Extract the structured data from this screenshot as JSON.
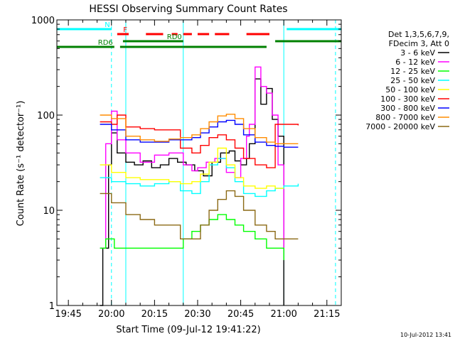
{
  "chart_data": {
    "type": "line",
    "title": "HESSI Observing Summary Count Rates",
    "xlabel": "Start Time (09-Jul-12 19:41:22)",
    "ylabel": "Count Rate (s⁻¹ detector⁻¹)",
    "yscale": "log",
    "ylim": [
      1,
      1000
    ],
    "xlim": [
      "19:41",
      "21:20"
    ],
    "x_ticks": [
      "19:45",
      "20:00",
      "20:15",
      "20:30",
      "20:45",
      "21:00",
      "21:15"
    ],
    "y_ticks": [
      "1",
      "10",
      "100",
      "1000"
    ],
    "timestamp": "10-Jul-2012 13:41",
    "legend_placement": "right",
    "legend_header": [
      "Det 1,3,5,6,7,9,",
      "FDecim 3, Att 0"
    ],
    "series": [
      {
        "name": "3 - 6 keV",
        "color": "#000000",
        "x": [
          "19:56",
          "19:57",
          "19:59",
          "20:00",
          "20:02",
          "20:05",
          "20:08",
          "20:11",
          "20:14",
          "20:17",
          "20:20",
          "20:23",
          "20:26",
          "20:29",
          "20:32",
          "20:35",
          "20:38",
          "20:41",
          "20:43",
          "20:45",
          "20:47",
          "20:48",
          "20:50",
          "20:52",
          "20:54",
          "20:56",
          "20:58",
          "21:00"
        ],
        "y": [
          1,
          4,
          30,
          65,
          40,
          32,
          30,
          33,
          28,
          30,
          35,
          32,
          30,
          26,
          23,
          32,
          40,
          42,
          33,
          30,
          35,
          50,
          240,
          130,
          190,
          90,
          60,
          1
        ]
      },
      {
        "name": "6 - 12 keV",
        "color": "#ff00ff",
        "x": [
          "19:56",
          "19:58",
          "20:00",
          "20:02",
          "20:05",
          "20:10",
          "20:15",
          "20:20",
          "20:25",
          "20:28",
          "20:30",
          "20:33",
          "20:36",
          "20:40",
          "20:43",
          "20:45",
          "20:47",
          "20:48",
          "20:50",
          "20:52",
          "20:54",
          "20:56",
          "20:58",
          "21:00"
        ],
        "y": [
          4,
          50,
          110,
          55,
          40,
          32,
          38,
          40,
          30,
          26,
          28,
          32,
          35,
          25,
          22,
          35,
          60,
          80,
          320,
          200,
          170,
          100,
          30,
          4
        ]
      },
      {
        "name": "12 - 25 keV",
        "color": "#00ff00",
        "x": [
          "19:56",
          "19:58",
          "20:01",
          "20:05",
          "20:10",
          "20:15",
          "20:20",
          "20:25",
          "20:28",
          "20:31",
          "20:34",
          "20:37",
          "20:40",
          "20:43",
          "20:46",
          "20:50",
          "20:54",
          "20:57",
          "21:00"
        ],
        "y": [
          4,
          5,
          4,
          4,
          4,
          4,
          4,
          5,
          6,
          7,
          8,
          9,
          8,
          7,
          6,
          5,
          4,
          4,
          3
        ]
      },
      {
        "name": "25 - 50 keV",
        "color": "#00ffff",
        "x": [
          "19:56",
          "20:00",
          "20:05",
          "20:10",
          "20:15",
          "20:20",
          "20:24",
          "20:28",
          "20:31",
          "20:34",
          "20:37",
          "20:40",
          "20:43",
          "20:46",
          "20:50",
          "20:54",
          "20:57",
          "21:00",
          "21:05"
        ],
        "y": [
          22,
          20,
          19,
          18,
          19,
          20,
          16,
          15,
          20,
          30,
          35,
          28,
          20,
          15,
          14,
          16,
          17,
          18,
          19
        ]
      },
      {
        "name": "50 - 100 keV",
        "color": "#ffff00",
        "x": [
          "19:56",
          "20:00",
          "20:05",
          "20:10",
          "20:15",
          "20:20",
          "20:24",
          "20:28",
          "20:31",
          "20:34",
          "20:37",
          "20:40",
          "20:43",
          "20:46",
          "20:50",
          "20:54",
          "20:57",
          "21:00"
        ],
        "y": [
          30,
          25,
          22,
          21,
          21,
          20,
          19,
          20,
          24,
          32,
          45,
          30,
          22,
          18,
          17,
          18,
          17,
          17
        ]
      },
      {
        "name": "100 - 300 keV",
        "color": "#ff0000",
        "x": [
          "19:56",
          "20:00",
          "20:02",
          "20:05",
          "20:10",
          "20:15",
          "20:20",
          "20:24",
          "20:28",
          "20:31",
          "20:34",
          "20:37",
          "20:40",
          "20:43",
          "20:46",
          "20:50",
          "20:54",
          "20:57",
          "21:00",
          "21:05"
        ],
        "y": [
          85,
          80,
          100,
          75,
          72,
          70,
          70,
          45,
          40,
          48,
          58,
          62,
          55,
          45,
          35,
          30,
          28,
          80,
          80,
          78
        ]
      },
      {
        "name": "300 - 800 keV",
        "color": "#0000ff",
        "x": [
          "19:56",
          "20:00",
          "20:05",
          "20:10",
          "20:15",
          "20:20",
          "20:24",
          "20:28",
          "20:31",
          "20:34",
          "20:37",
          "20:40",
          "20:43",
          "20:46",
          "20:50",
          "20:54",
          "20:57",
          "21:00",
          "21:05"
        ],
        "y": [
          80,
          70,
          55,
          52,
          52,
          55,
          55,
          58,
          65,
          75,
          85,
          88,
          80,
          62,
          52,
          48,
          47,
          46,
          46
        ]
      },
      {
        "name": "800 - 7000 keV",
        "color": "#ff8c00",
        "x": [
          "19:56",
          "20:00",
          "20:05",
          "20:10",
          "20:15",
          "20:20",
          "20:24",
          "20:28",
          "20:31",
          "20:34",
          "20:37",
          "20:40",
          "20:43",
          "20:46",
          "20:50",
          "20:54",
          "20:57",
          "21:00",
          "21:05"
        ],
        "y": [
          100,
          92,
          60,
          55,
          53,
          56,
          58,
          62,
          72,
          85,
          98,
          102,
          92,
          72,
          58,
          52,
          50,
          50,
          50
        ]
      },
      {
        "name": "7000 - 20000 keV",
        "color": "#8b6914",
        "x": [
          "19:56",
          "20:00",
          "20:05",
          "20:10",
          "20:15",
          "20:20",
          "20:24",
          "20:28",
          "20:31",
          "20:34",
          "20:37",
          "20:40",
          "20:43",
          "20:46",
          "20:50",
          "20:54",
          "20:57",
          "21:00",
          "21:05"
        ],
        "y": [
          15,
          12,
          9,
          8,
          7,
          7,
          5,
          5,
          7,
          10,
          13,
          16,
          14,
          10,
          7,
          6,
          5,
          5,
          5
        ]
      }
    ],
    "flag_bars": [
      {
        "label": "N",
        "color": "#00ffff",
        "segments": [
          [
            "19:41",
            "20:00"
          ],
          [
            "21:01",
            "21:20"
          ]
        ]
      },
      {
        "label": "F",
        "color": "#ff0000",
        "segments": [
          [
            "20:02",
            "20:06"
          ],
          [
            "20:12",
            "20:18"
          ],
          [
            "20:21",
            "20:23"
          ],
          [
            "20:25",
            "20:28"
          ],
          [
            "20:30",
            "20:34"
          ],
          [
            "20:36",
            "20:41"
          ],
          [
            "20:47",
            "20:55"
          ]
        ]
      },
      {
        "label": "RD0",
        "color": "#008000",
        "segments": [
          [
            "20:04",
            "20:25"
          ],
          [
            "20:57",
            "21:20"
          ]
        ]
      },
      {
        "label": "RD6",
        "color": "#008000",
        "segments": [
          [
            "19:41",
            "20:01"
          ],
          [
            "20:03",
            "20:25"
          ],
          [
            "20:25",
            "20:54"
          ]
        ]
      }
    ],
    "marker_lines": [
      {
        "time": "20:00",
        "style": "dashed",
        "color": "#00ffff"
      },
      {
        "time": "20:05",
        "style": "solid",
        "color": "#00ffff"
      },
      {
        "time": "20:25",
        "style": "solid",
        "color": "#00ffff"
      },
      {
        "time": "21:00",
        "style": "solid",
        "color": "#00ffff"
      },
      {
        "time": "21:18",
        "style": "dashed",
        "color": "#00ffff"
      }
    ]
  }
}
